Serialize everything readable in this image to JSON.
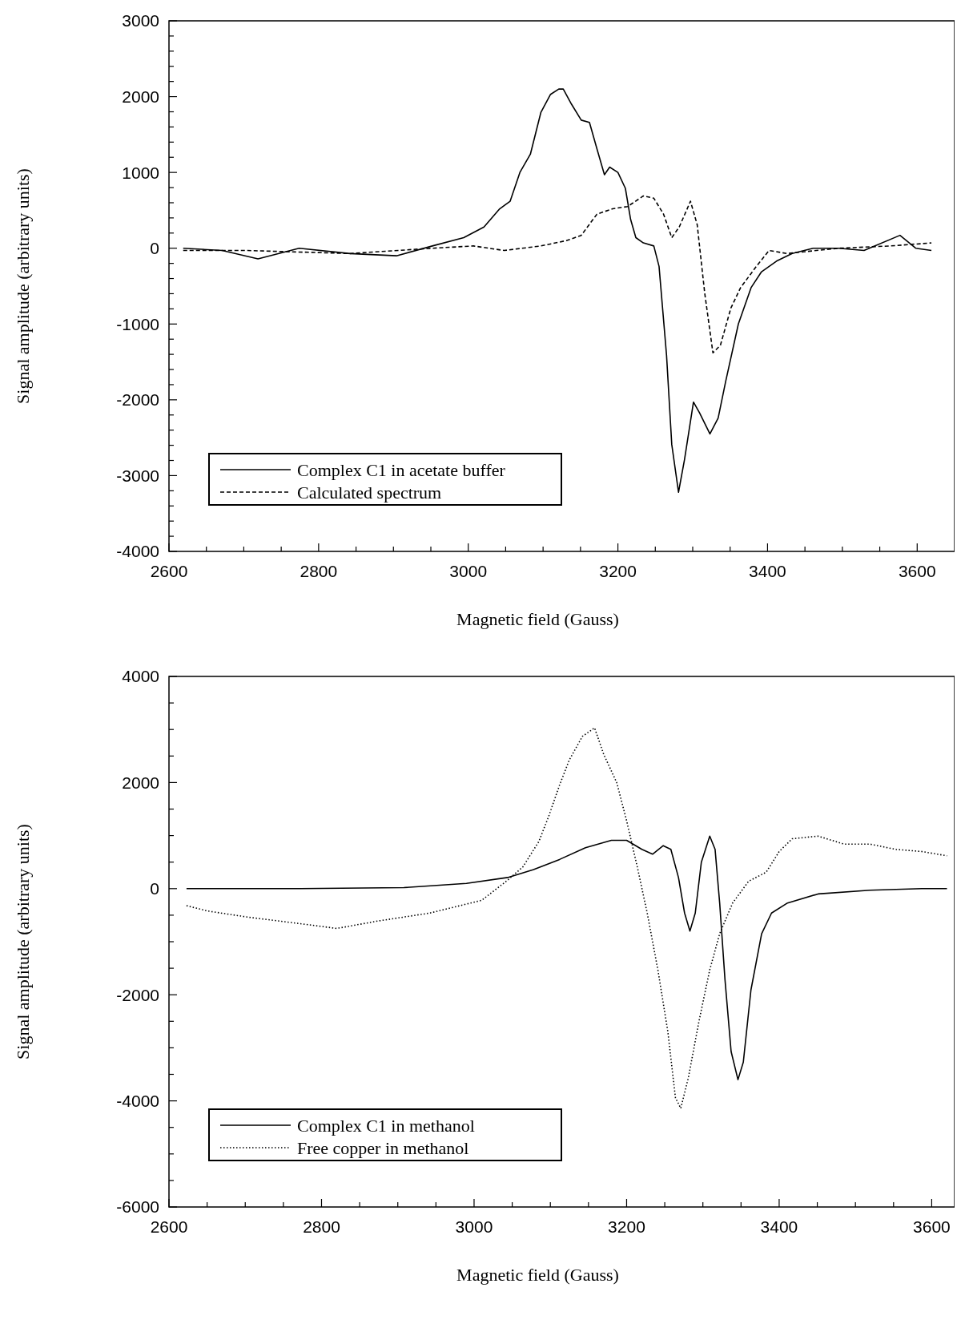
{
  "chart_data": [
    {
      "type": "line",
      "xlabel": "Magnetic field (Gauss)",
      "ylabel": "Signal amplitude (arbitrary units)",
      "xlim": [
        2600,
        3650
      ],
      "ylim": [
        -4000,
        3000
      ],
      "xticks": [
        2600,
        {
          "value": 2650,
          "label": null
        },
        {
          "value": 2700,
          "label": null
        },
        {
          "value": 2750,
          "label": null
        },
        2800,
        {
          "value": 2850,
          "label": null
        },
        {
          "value": 2900,
          "label": null
        },
        {
          "value": 2950,
          "label": null
        },
        3000,
        {
          "value": 3050,
          "label": null
        },
        {
          "value": 3100,
          "label": null
        },
        {
          "value": 3150,
          "label": null
        },
        3200,
        {
          "value": 3250,
          "label": null
        },
        {
          "value": 3300,
          "label": null
        },
        {
          "value": 3350,
          "label": null
        },
        3400,
        {
          "value": 3450,
          "label": null
        },
        {
          "value": 3500,
          "label": null
        },
        {
          "value": 3550,
          "label": null
        },
        3600
      ],
      "yticks": [
        -4000,
        {
          "value": -3800,
          "label": null
        },
        {
          "value": -3600,
          "label": null
        },
        {
          "value": -3400,
          "label": null
        },
        {
          "value": -3200,
          "label": null
        },
        -3000,
        {
          "value": -2800,
          "label": null
        },
        {
          "value": -2600,
          "label": null
        },
        {
          "value": -2400,
          "label": null
        },
        {
          "value": -2200,
          "label": null
        },
        -2000,
        {
          "value": -1800,
          "label": null
        },
        {
          "value": -1600,
          "label": null
        },
        {
          "value": -1400,
          "label": null
        },
        {
          "value": -1200,
          "label": null
        },
        -1000,
        {
          "value": -800,
          "label": null
        },
        {
          "value": -600,
          "label": null
        },
        {
          "value": -400,
          "label": null
        },
        {
          "value": -200,
          "label": null
        },
        0,
        {
          "value": 200,
          "label": null
        },
        {
          "value": 400,
          "label": null
        },
        {
          "value": 600,
          "label": null
        },
        {
          "value": 800,
          "label": null
        },
        1000,
        {
          "value": 1200,
          "label": null
        },
        {
          "value": 1400,
          "label": null
        },
        {
          "value": 1600,
          "label": null
        },
        {
          "value": 1800,
          "label": null
        },
        2000,
        {
          "value": 2200,
          "label": null
        },
        {
          "value": 2400,
          "label": null
        },
        {
          "value": 2600,
          "label": null
        },
        {
          "value": 2800,
          "label": null
        },
        3000
      ],
      "grid": false,
      "legend": "bottom left",
      "series": [
        {
          "name": "Complex C1 in acetate buffer",
          "color": "#000000",
          "line_style": "solid",
          "x": [
            2619,
            2671,
            2719,
            2774,
            2842,
            2904,
            2952,
            2994,
            3021,
            3042,
            3056,
            3069,
            3083,
            3097,
            3110,
            3121,
            3127,
            3138,
            3151,
            3162,
            3172,
            3182,
            3189,
            3200,
            3210,
            3217,
            3224,
            3234,
            3248,
            3255,
            3265,
            3272,
            3281,
            3289,
            3301,
            3309,
            3323,
            3334,
            3344,
            3361,
            3378,
            3392,
            3412,
            3433,
            3461,
            3495,
            3529,
            3577,
            3598,
            3619
          ],
          "values": [
            0,
            -30,
            -140,
            0,
            -70,
            -100,
            30,
            140,
            280,
            520,
            620,
            1000,
            1240,
            1790,
            2030,
            2100,
            2100,
            1900,
            1690,
            1660,
            1310,
            970,
            1070,
            1000,
            790,
            380,
            140,
            70,
            30,
            -240,
            -1410,
            -2590,
            -3220,
            -2790,
            -2030,
            -2170,
            -2450,
            -2240,
            -1760,
            -1000,
            -520,
            -310,
            -170,
            -70,
            0,
            0,
            -30,
            170,
            0,
            -30
          ]
        },
        {
          "name": "Calculated spectrum",
          "color": "#000000",
          "line_style": "dashed",
          "x": [
            2619,
            2705,
            2842,
            2952,
            3007,
            3048,
            3097,
            3131,
            3151,
            3172,
            3193,
            3213,
            3234,
            3248,
            3261,
            3272,
            3282,
            3297,
            3306,
            3316,
            3327,
            3337,
            3351,
            3364,
            3385,
            3402,
            3426,
            3495,
            3564,
            3619
          ],
          "values": [
            -30,
            -30,
            -70,
            0,
            30,
            -30,
            30,
            100,
            170,
            450,
            520,
            550,
            690,
            660,
            450,
            140,
            280,
            620,
            310,
            -590,
            -1380,
            -1280,
            -790,
            -520,
            -240,
            -30,
            -70,
            0,
            30,
            70
          ]
        }
      ]
    },
    {
      "type": "line",
      "xlabel": "Magnetic field (Gauss)",
      "ylabel": "Signal amplitude (arbitrary units)",
      "xlim": [
        2600,
        3630
      ],
      "ylim": [
        -6000,
        4000
      ],
      "xticks": [
        2600,
        {
          "value": 2650,
          "label": null
        },
        {
          "value": 2700,
          "label": null
        },
        {
          "value": 2750,
          "label": null
        },
        2800,
        {
          "value": 2850,
          "label": null
        },
        {
          "value": 2900,
          "label": null
        },
        {
          "value": 2950,
          "label": null
        },
        3000,
        {
          "value": 3050,
          "label": null
        },
        {
          "value": 3100,
          "label": null
        },
        {
          "value": 3150,
          "label": null
        },
        3200,
        {
          "value": 3250,
          "label": null
        },
        {
          "value": 3300,
          "label": null
        },
        {
          "value": 3350,
          "label": null
        },
        3400,
        {
          "value": 3450,
          "label": null
        },
        {
          "value": 3500,
          "label": null
        },
        {
          "value": 3550,
          "label": null
        },
        3600
      ],
      "yticks": [
        -6000,
        {
          "value": -5500,
          "label": null
        },
        {
          "value": -5000,
          "label": null
        },
        {
          "value": -4500,
          "label": null
        },
        -4000,
        {
          "value": -3500,
          "label": null
        },
        {
          "value": -3000,
          "label": null
        },
        {
          "value": -2500,
          "label": null
        },
        -2000,
        {
          "value": -1500,
          "label": null
        },
        {
          "value": -1000,
          "label": null
        },
        {
          "value": -500,
          "label": null
        },
        0,
        {
          "value": 500,
          "label": null
        },
        {
          "value": 1000,
          "label": null
        },
        {
          "value": 1500,
          "label": null
        },
        2000,
        {
          "value": 2500,
          "label": null
        },
        {
          "value": 3000,
          "label": null
        },
        {
          "value": 3500,
          "label": null
        },
        4000
      ],
      "grid": false,
      "legend": "bottom left",
      "series": [
        {
          "name": "Complex C1 in methanol",
          "color": "#000000",
          "line_style": "solid",
          "x": [
            2623,
            2772,
            2908,
            2990,
            3044,
            3078,
            3112,
            3146,
            3180,
            3200,
            3220,
            3234,
            3248,
            3258,
            3268,
            3276,
            3283,
            3290,
            3298,
            3309,
            3316,
            3322,
            3329,
            3337,
            3346,
            3353,
            3363,
            3377,
            3390,
            3411,
            3451,
            3519,
            3587,
            3620
          ],
          "values": [
            0,
            0,
            20,
            100,
            210,
            360,
            550,
            770,
            910,
            910,
            740,
            650,
            810,
            740,
            210,
            -460,
            -800,
            -460,
            500,
            990,
            740,
            -270,
            -1720,
            -3070,
            -3600,
            -3270,
            -1910,
            -850,
            -460,
            -270,
            -100,
            -30,
            0,
            0
          ]
        },
        {
          "name": "Free copper in methanol",
          "color": "#000000",
          "line_style": "dotted",
          "x": [
            2623,
            2650,
            2705,
            2772,
            2820,
            2874,
            2942,
            3010,
            3044,
            3064,
            3085,
            3098,
            3112,
            3125,
            3142,
            3158,
            3170,
            3187,
            3200,
            3214,
            3227,
            3241,
            3254,
            3264,
            3271,
            3281,
            3295,
            3309,
            3322,
            3339,
            3360,
            3383,
            3400,
            3417,
            3451,
            3485,
            3519,
            3553,
            3587,
            3620
          ],
          "values": [
            -320,
            -420,
            -540,
            -660,
            -750,
            -610,
            -460,
            -220,
            160,
            410,
            890,
            1370,
            1950,
            2430,
            2870,
            3030,
            2530,
            2000,
            1280,
            410,
            -460,
            -1530,
            -2690,
            -3940,
            -4140,
            -3560,
            -2490,
            -1530,
            -850,
            -270,
            140,
            310,
            700,
            940,
            990,
            840,
            840,
            740,
            700,
            620
          ]
        }
      ]
    }
  ]
}
